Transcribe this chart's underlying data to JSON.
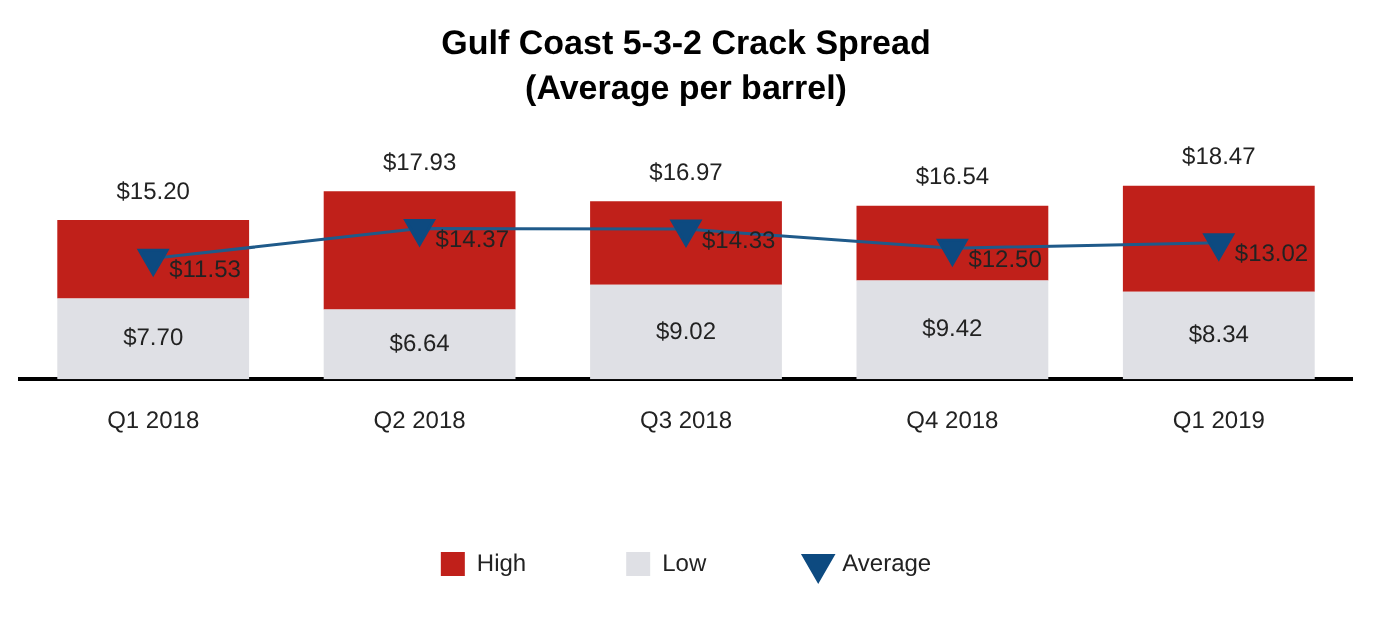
{
  "chart_data": {
    "type": "bar",
    "title": "Gulf Coast 5-3-2 Crack Spread",
    "subtitle": "(Average per barrel)",
    "categories": [
      "Q1 2018",
      "Q2 2018",
      "Q3 2018",
      "Q4 2018",
      "Q1 2019"
    ],
    "stacked": true,
    "totals": [
      "$15.20",
      "$17.93",
      "$16.97",
      "$16.54",
      "$18.47"
    ],
    "tick_labels": "x",
    "grid": false,
    "legend": "bottom",
    "series": [
      {
        "name": "Low",
        "color": "#dfe0e5",
        "values": [
          7.7,
          6.64,
          9.02,
          9.42,
          8.34
        ],
        "value_labels": [
          "$7.70",
          "$6.64",
          "$9.02",
          "$9.42",
          "$8.34"
        ]
      },
      {
        "name": "High",
        "color": "#c0201a",
        "values": [
          7.5,
          11.29,
          7.95,
          7.12,
          10.13
        ]
      },
      {
        "name": "Average",
        "type": "line",
        "color": "#1f5a8a",
        "marker": "triangle",
        "values": [
          11.53,
          14.37,
          14.33,
          12.5,
          13.02
        ],
        "value_labels": [
          "$11.53",
          "$14.37",
          "$14.33",
          "$12.50",
          "$13.02"
        ]
      }
    ]
  }
}
